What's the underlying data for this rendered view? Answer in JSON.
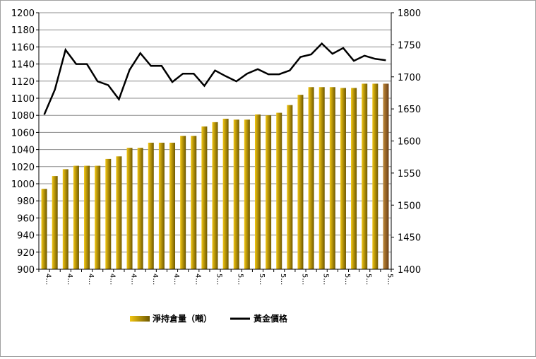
{
  "chart_data": {
    "type": "bar+line",
    "title": "",
    "categories": [
      "4…",
      "4…",
      "4…",
      "4…",
      "4…",
      "4…",
      "4…",
      "4…",
      "4…",
      "4…",
      "4…",
      "4…",
      "4…",
      "4…",
      "4…",
      "4…",
      "5…",
      "5…",
      "5…",
      "5…",
      "5…",
      "5…",
      "5…",
      "5…",
      "5…",
      "5…",
      "5…",
      "5…",
      "5…",
      "5…",
      "5…",
      "5…",
      "5…"
    ],
    "series": [
      {
        "name": "淨持倉量（噸）",
        "type": "bar",
        "axis": "left",
        "values": [
          994,
          1009,
          1017,
          1021,
          1021,
          1021,
          1029,
          1032,
          1042,
          1042,
          1048,
          1048,
          1048,
          1056,
          1056,
          1067,
          1072,
          1076,
          1075,
          1075,
          1081,
          1080,
          1083,
          1092,
          1104,
          1113,
          1113,
          1113,
          1112,
          1112,
          1117,
          1117,
          1117
        ]
      },
      {
        "name": "黃金價格",
        "type": "line",
        "axis": "right",
        "values": [
          1641,
          1680,
          1742,
          1720,
          1720,
          1693,
          1687,
          1665,
          1711,
          1737,
          1717,
          1717,
          1692,
          1705,
          1705,
          1686,
          1710,
          1701,
          1693,
          1705,
          1712,
          1704,
          1704,
          1710,
          1731,
          1735,
          1752,
          1736,
          1745,
          1725,
          1733,
          1728,
          1726
        ]
      }
    ],
    "yaxis_left": {
      "min": 900,
      "max": 1200,
      "step": 20,
      "ticks": [
        "900",
        "920",
        "940",
        "960",
        "980",
        "1000",
        "1020",
        "1040",
        "1060",
        "1080",
        "1100",
        "1120",
        "1140",
        "1160",
        "1180",
        "1200"
      ]
    },
    "yaxis_right": {
      "min": 1400,
      "max": 1800,
      "step": 50,
      "ticks": [
        "1400",
        "1450",
        "1500",
        "1550",
        "1600",
        "1650",
        "1700",
        "1750",
        "1800"
      ]
    },
    "grid": true,
    "legend_position": "bottom",
    "colors": {
      "bar_light": "#f2c612",
      "bar_dark": "#6e5800",
      "last_bar_light": "#c08a3a",
      "last_bar_dark": "#6a3e16",
      "line": "#000000",
      "grid": "#8c8c8c"
    }
  }
}
